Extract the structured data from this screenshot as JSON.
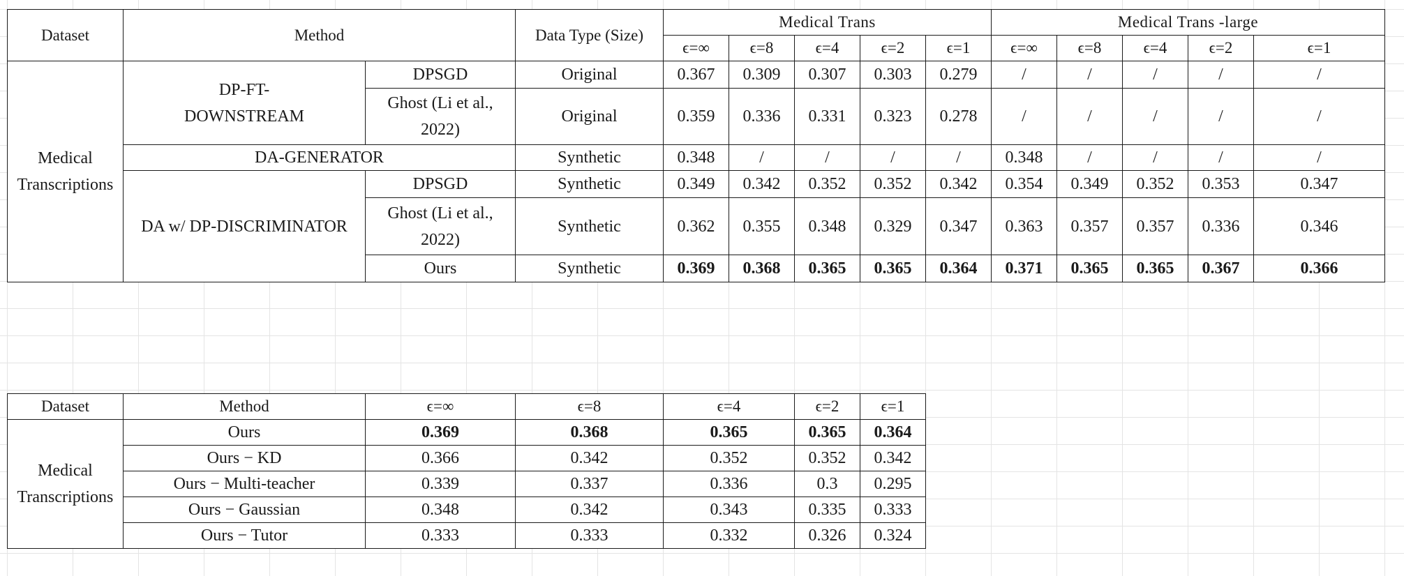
{
  "table1": {
    "headers": {
      "dataset": "Dataset",
      "method": "Method",
      "data_type": "Data Type (Size)",
      "group1": "Medical Trans",
      "group2": "Medical Trans -large",
      "eps": [
        "ϵ=∞",
        "ϵ=8",
        "ϵ=4",
        "ϵ=2",
        "ϵ=1"
      ]
    },
    "dataset_label": "Medical Transcriptions",
    "groups": {
      "dp_ft": "DP-FT-DOWNSTREAM",
      "da_gen": "DA-GENERATOR",
      "da_dp": "DA w/ DP-DISCRIMINATOR"
    },
    "rows": [
      {
        "sub": "DPSGD",
        "type": "Original",
        "vals": [
          "0.367",
          "0.309",
          "0.307",
          "0.303",
          "0.279",
          "/",
          "/",
          "/",
          "/",
          "/"
        ]
      },
      {
        "sub": "Ghost (Li et al., 2022)",
        "type": "Original",
        "vals": [
          "0.359",
          "0.336",
          "0.331",
          "0.323",
          "0.278",
          "/",
          "/",
          "/",
          "/",
          "/"
        ]
      },
      {
        "sub": "",
        "type": "Synthetic",
        "vals": [
          "0.348",
          "/",
          "/",
          "/",
          "/",
          "0.348",
          "/",
          "/",
          "/",
          "/"
        ]
      },
      {
        "sub": "DPSGD",
        "type": "Synthetic",
        "vals": [
          "0.349",
          "0.342",
          "0.352",
          "0.352",
          "0.342",
          "0.354",
          "0.349",
          "0.352",
          "0.353",
          "0.347"
        ]
      },
      {
        "sub": "Ghost (Li et al., 2022)",
        "type": "Synthetic",
        "vals": [
          "0.362",
          "0.355",
          "0.348",
          "0.329",
          "0.347",
          "0.363",
          "0.357",
          "0.357",
          "0.336",
          "0.346"
        ]
      },
      {
        "sub": "Ours",
        "type": "Synthetic",
        "vals": [
          "0.369",
          "0.368",
          "0.365",
          "0.365",
          "0.364",
          "0.371",
          "0.365",
          "0.365",
          "0.367",
          "0.366"
        ]
      }
    ]
  },
  "table2": {
    "headers": {
      "dataset": "Dataset",
      "method": "Method",
      "eps": [
        "ϵ=∞",
        "ϵ=8",
        "ϵ=4",
        "ϵ=2",
        "ϵ=1"
      ]
    },
    "dataset_label": "Medical Transcriptions",
    "rows": [
      {
        "method": "Ours",
        "vals": [
          "0.369",
          "0.368",
          "0.365",
          "0.365",
          "0.364"
        ]
      },
      {
        "method": "Ours − KD",
        "vals": [
          "0.366",
          "0.342",
          "0.352",
          "0.352",
          "0.342"
        ]
      },
      {
        "method": "Ours − Multi-teacher",
        "vals": [
          "0.339",
          "0.337",
          "0.336",
          "0.3",
          "0.295"
        ]
      },
      {
        "method": "Ours − Gaussian",
        "vals": [
          "0.348",
          "0.342",
          "0.343",
          "0.335",
          "0.333"
        ]
      },
      {
        "method": "Ours − Tutor",
        "vals": [
          "0.333",
          "0.333",
          "0.332",
          "0.326",
          "0.324"
        ]
      }
    ]
  }
}
